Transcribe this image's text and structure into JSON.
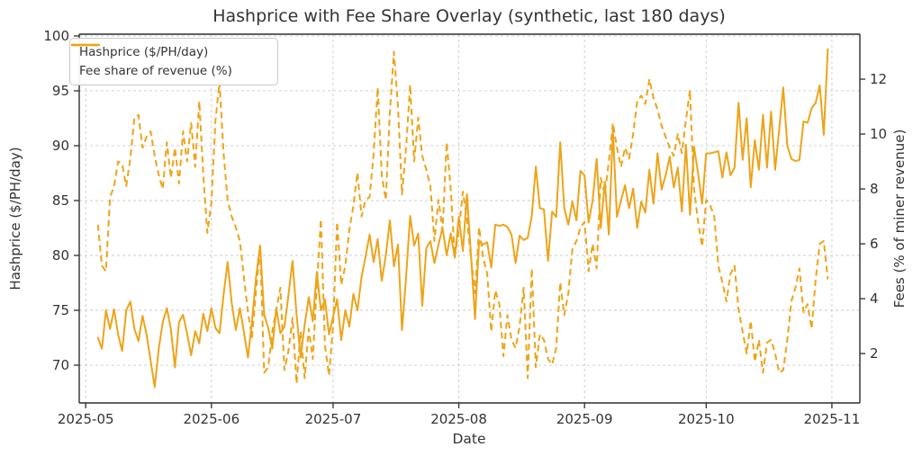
{
  "chart_data": {
    "type": "line",
    "title": "Hashprice with Fee Share Overlay (synthetic, last 180 days)",
    "xlabel": "Date",
    "ylabel_left": "Hashprice ($/PH/day)",
    "ylabel_right": "Fees (% of miner revenue)",
    "grid": true,
    "legend_position": "upper left",
    "line_color": "#EDA419",
    "text_color": "#333333",
    "spine_color": "#2e2e2e",
    "grid_color": "#cbcbcb",
    "x_tick_labels": [
      "2025-05",
      "2025-06",
      "2025-07",
      "2025-08",
      "2025-09",
      "2025-10",
      "2025-11"
    ],
    "x_tick_days": [
      0,
      31,
      61,
      92,
      123,
      153,
      184
    ],
    "x_domain_days": [
      -1.6,
      190.9
    ],
    "left_axis": {
      "ticks": [
        70,
        75,
        80,
        85,
        90,
        95,
        100
      ],
      "range": [
        66.56,
        100.16
      ]
    },
    "right_axis": {
      "ticks": [
        2,
        4,
        6,
        8,
        10,
        12
      ],
      "range": [
        0.2,
        13.64
      ]
    },
    "start_date": "2025-05-04",
    "start_day_offset": 3,
    "series": [
      {
        "name": "Hashprice ($/PH/day)",
        "axis": "left",
        "style": "solid",
        "values": [
          72.5,
          71.5,
          75.0,
          73.3,
          75.1,
          72.8,
          71.3,
          75.0,
          75.8,
          73.3,
          72.2,
          74.5,
          72.8,
          70.4,
          68.0,
          71.5,
          73.9,
          75.2,
          73.3,
          69.8,
          73.9,
          74.6,
          72.9,
          70.9,
          73.1,
          72.0,
          74.7,
          73.1,
          75.2,
          73.4,
          72.9,
          76.4,
          79.4,
          75.7,
          73.2,
          75.2,
          73.0,
          70.7,
          74.0,
          78.0,
          80.9,
          74.6,
          73.4,
          71.5,
          75.2,
          72.9,
          73.5,
          76.4,
          79.5,
          74.6,
          70.7,
          73.7,
          76.2,
          74.0,
          78.5,
          75.0,
          76.0,
          72.8,
          74.4,
          76.0,
          72.3,
          75.0,
          73.5,
          76.5,
          75.0,
          78.0,
          79.9,
          81.9,
          79.4,
          81.5,
          77.7,
          80.0,
          83.2,
          79.0,
          81.0,
          73.2,
          78.0,
          83.6,
          80.9,
          82.0,
          75.4,
          80.7,
          81.3,
          79.3,
          81.0,
          82.5,
          80.0,
          82.0,
          79.8,
          83.5,
          80.4,
          85.6,
          80.0,
          74.2,
          81.3,
          81.0,
          81.2,
          78.9,
          82.8,
          82.7,
          82.8,
          82.6,
          81.9,
          79.3,
          81.8,
          81.4,
          81.6,
          83.6,
          88.1,
          84.3,
          84.2,
          79.5,
          84.0,
          83.5,
          90.3,
          84.3,
          82.8,
          84.9,
          83.2,
          87.7,
          87.3,
          83.0,
          85.0,
          88.8,
          82.5,
          86.7,
          81.9,
          91.4,
          83.5,
          85.0,
          86.4,
          84.3,
          86.1,
          82.5,
          84.9,
          83.9,
          87.8,
          84.7,
          89.3,
          86.0,
          87.3,
          89.0,
          86.2,
          88.0,
          84.0,
          90.1,
          83.7,
          89.9,
          87.5,
          84.7,
          89.3,
          89.3,
          89.4,
          89.5,
          87.1,
          89.4,
          87.3,
          88.0,
          93.9,
          88.7,
          92.5,
          86.2,
          90.5,
          87.8,
          92.8,
          88.0,
          93.1,
          87.8,
          91.5,
          95.3,
          90.0,
          88.8,
          88.6,
          88.7,
          92.2,
          92.1,
          93.4,
          93.9,
          95.5,
          91.0,
          98.8
        ]
      },
      {
        "name": "Fee share of revenue (%)",
        "axis": "right",
        "style": "dashed",
        "values": [
          6.7,
          5.2,
          5.0,
          7.7,
          8.1,
          9.0,
          8.9,
          8.1,
          9.1,
          10.6,
          10.7,
          9.5,
          9.9,
          10.1,
          9.2,
          8.5,
          8.0,
          9.7,
          8.4,
          9.5,
          8.2,
          10.1,
          9.0,
          10.4,
          8.8,
          11.2,
          8.5,
          6.4,
          7.5,
          10.5,
          11.9,
          9.3,
          7.6,
          7.0,
          6.6,
          6.1,
          4.8,
          3.5,
          2.6,
          4.3,
          5.9,
          1.3,
          1.5,
          2.8,
          3.6,
          4.4,
          1.4,
          2.1,
          3.3,
          0.9,
          2.8,
          1.1,
          2.9,
          1.8,
          4.5,
          6.9,
          2.3,
          1.2,
          3.0,
          6.8,
          4.5,
          5.2,
          6.5,
          7.4,
          8.6,
          7.0,
          7.6,
          7.7,
          9.3,
          11.7,
          8.5,
          7.6,
          10.8,
          13.0,
          11.0,
          7.8,
          9.5,
          11.8,
          9.0,
          10.6,
          9.2,
          8.7,
          8.1,
          6.1,
          7.6,
          6.5,
          9.7,
          8.0,
          5.5,
          6.5,
          7.9,
          6.9,
          5.5,
          4.2,
          6.6,
          5.5,
          4.9,
          2.8,
          4.3,
          3.8,
          1.9,
          3.4,
          2.5,
          2.2,
          3.0,
          4.4,
          1.1,
          5.1,
          1.5,
          2.7,
          2.5,
          1.8,
          1.6,
          2.2,
          4.6,
          3.4,
          4.2,
          5.8,
          6.1,
          6.6,
          6.8,
          5.0,
          6.0,
          5.1,
          8.4,
          7.8,
          9.0,
          10.4,
          9.5,
          8.8,
          9.5,
          9.1,
          10.0,
          11.2,
          11.4,
          11.1,
          12.0,
          11.3,
          10.9,
          10.3,
          9.9,
          9.5,
          9.2,
          10.0,
          9.3,
          10.5,
          11.6,
          8.0,
          6.8,
          5.9,
          7.6,
          7.4,
          7.0,
          5.2,
          4.6,
          3.9,
          4.9,
          5.2,
          3.6,
          2.8,
          2.0,
          3.2,
          1.7,
          2.5,
          1.3,
          2.4,
          2.5,
          2.0,
          1.3,
          1.4,
          2.5,
          3.9,
          4.4,
          5.1,
          3.5,
          3.8,
          2.9,
          4.7,
          6.0,
          6.1,
          4.7
        ]
      }
    ]
  },
  "legend": {
    "item1": "Hashprice ($/PH/day)",
    "item2": "Fee share of revenue (%)"
  }
}
